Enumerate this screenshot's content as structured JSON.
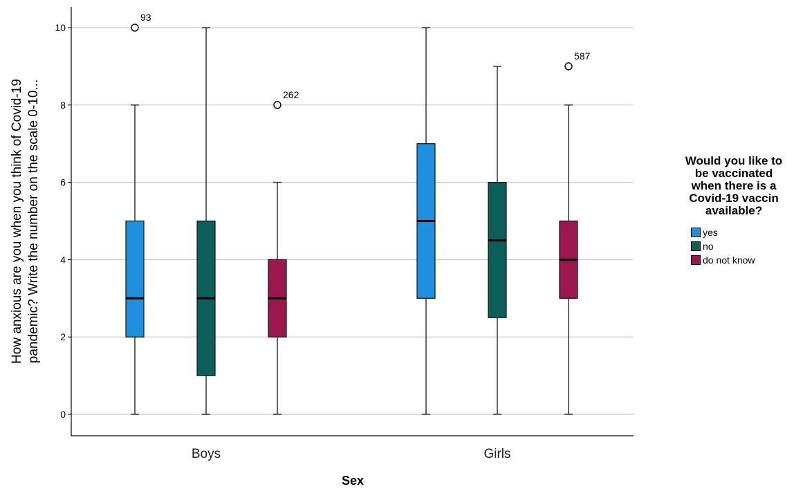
{
  "chart_data": {
    "type": "boxplot",
    "xlabel": "Sex",
    "ylabel": "How anxious are you when you think of Covid-19 pandemic? Write the number on the scale 0-10...",
    "ylabel_lines": [
      "How anxious are you when you think of Covid-19",
      "pandemic? Write the number on the scale 0-10..."
    ],
    "ylim": [
      0,
      10
    ],
    "yticks": [
      0,
      2,
      4,
      6,
      8,
      10
    ],
    "grid": true,
    "categories": [
      "Boys",
      "Girls"
    ],
    "legend": {
      "title": "Would you like to be vaccinated when there is a Covid-19 vaccin available?",
      "title_lines": [
        "Would you like to",
        "be vaccinated",
        "when there is a",
        "Covid-19 vaccin",
        "available?"
      ],
      "placement": "right"
    },
    "series": [
      {
        "name": "yes",
        "color": "#1E90DE",
        "boxes": [
          {
            "category": "Boys",
            "min": 0,
            "q1": 2,
            "median": 3,
            "q3": 5,
            "max": 8,
            "outliers": [
              {
                "value": 10,
                "label": "93"
              }
            ]
          },
          {
            "category": "Girls",
            "min": 0,
            "q1": 3,
            "median": 5,
            "q3": 7,
            "max": 10,
            "outliers": []
          }
        ]
      },
      {
        "name": "no",
        "color": "#0D5F59",
        "boxes": [
          {
            "category": "Boys",
            "min": 0,
            "q1": 1,
            "median": 3,
            "q3": 5,
            "max": 10,
            "outliers": []
          },
          {
            "category": "Girls",
            "min": 0,
            "q1": 2.5,
            "median": 4.5,
            "q3": 6,
            "max": 9,
            "outliers": []
          }
        ]
      },
      {
        "name": "do not know",
        "color": "#9B174D",
        "boxes": [
          {
            "category": "Boys",
            "min": 0,
            "q1": 2,
            "median": 3,
            "q3": 4,
            "max": 6,
            "outliers": [
              {
                "value": 8,
                "label": "262"
              }
            ]
          },
          {
            "category": "Girls",
            "min": 0,
            "q1": 3,
            "median": 4,
            "q3": 5,
            "max": 8,
            "outliers": [
              {
                "value": 9,
                "label": "587"
              }
            ]
          }
        ]
      }
    ]
  }
}
